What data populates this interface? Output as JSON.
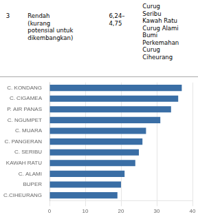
{
  "chart_data": {
    "type": "bar",
    "orientation": "horizontal",
    "categories": [
      "C. KONDANG",
      "C. CIGAMEA",
      "P. AIR PANAS",
      "C. NGUMPET",
      "C. MUARA",
      "C. PANGERAN",
      "C. SERIBU",
      "KAWAH RATU",
      "C. ALAMI",
      "BUPER",
      "C.CIHEURANG"
    ],
    "values": [
      37,
      36,
      34,
      31,
      27,
      26,
      25,
      24,
      21,
      20,
      19
    ],
    "color": "#3A6EA5",
    "xlim": [
      0,
      40
    ],
    "xticks": [
      0,
      10,
      20,
      30,
      40
    ],
    "grid": true,
    "annotations": [
      "3",
      "Rendah\n(kurang\npotensial untuk\ndikembangkan)",
      "6,24–\n4,75",
      "Curug\nSeribu\nKawah Ratu\nCurug Alami\nBumi\nPerkemahan\nCurug\nCiheurang"
    ]
  }
}
